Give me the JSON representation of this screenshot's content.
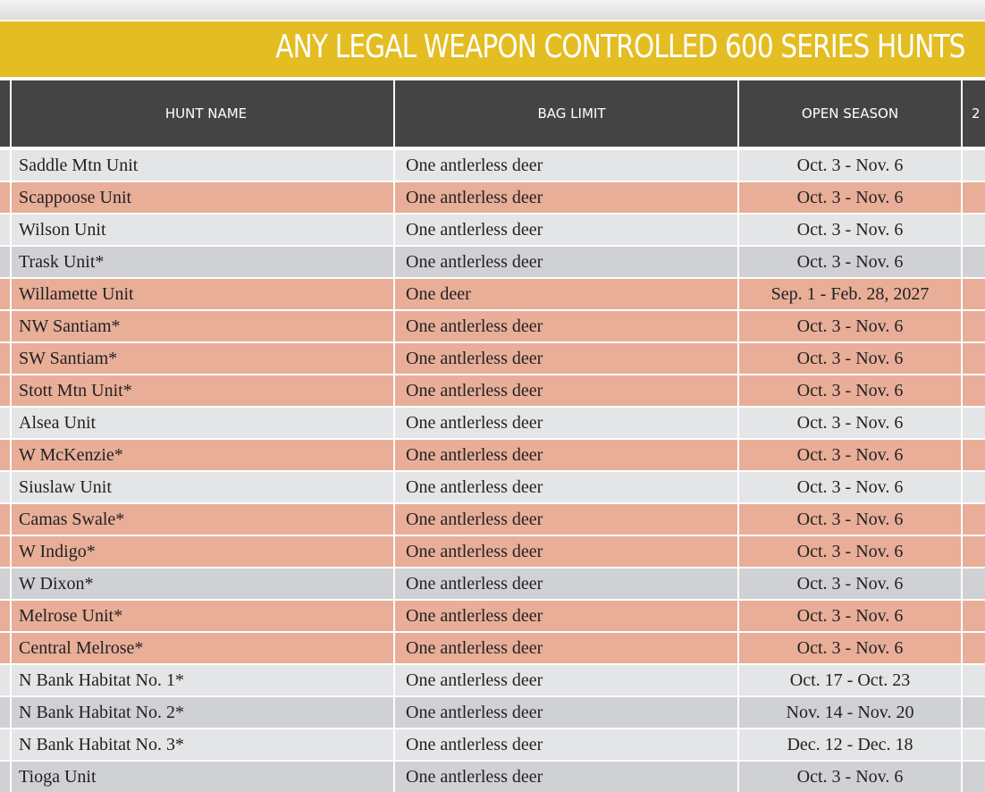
{
  "header": {
    "title": "ANY LEGAL WEAPON CONTROLLED 600 SERIES HUNTS"
  },
  "table": {
    "columns": [
      "HUNT NAME",
      "BAG LIMIT",
      "OPEN SEASON",
      "2"
    ],
    "rows": [
      [
        "Saddle Mtn Unit",
        "One antlerless deer",
        "Oct. 3 - Nov. 6"
      ],
      [
        "Scappoose Unit",
        "One antlerless deer",
        "Oct. 3 - Nov. 6"
      ],
      [
        "Wilson Unit",
        "One antlerless deer",
        "Oct. 3 - Nov. 6"
      ],
      [
        "Trask Unit*",
        "One antlerless deer",
        "Oct. 3 - Nov. 6"
      ],
      [
        "Willamette Unit",
        "One deer",
        "Sep. 1 - Feb. 28, 2027"
      ],
      [
        "NW Santiam*",
        "One antlerless deer",
        "Oct. 3 - Nov. 6"
      ],
      [
        "SW Santiam*",
        "One antlerless deer",
        "Oct. 3 - Nov. 6"
      ],
      [
        "Stott Mtn Unit*",
        "One antlerless deer",
        "Oct. 3 - Nov. 6"
      ],
      [
        "Alsea Unit",
        "One antlerless deer",
        "Oct. 3 - Nov. 6"
      ],
      [
        "W McKenzie*",
        "One antlerless deer",
        "Oct. 3 - Nov. 6"
      ],
      [
        "Siuslaw Unit",
        "One antlerless deer",
        "Oct. 3 - Nov. 6"
      ],
      [
        "Camas Swale*",
        "One antlerless deer",
        "Oct. 3 - Nov. 6"
      ],
      [
        "W Indigo*",
        "One antlerless deer",
        "Oct. 3 - Nov. 6"
      ],
      [
        "W Dixon*",
        "One antlerless deer",
        "Oct. 3 - Nov. 6"
      ],
      [
        "Melrose Unit*",
        "One antlerless deer",
        "Oct. 3 - Nov. 6"
      ],
      [
        "Central Melrose*",
        "One antlerless deer",
        "Oct. 3 - Nov. 6"
      ],
      [
        "N Bank Habitat No. 1*",
        "One antlerless deer",
        "Oct. 17 - Oct. 23"
      ],
      [
        "N Bank Habitat No. 2*",
        "One antlerless deer",
        "Nov. 14 - Nov. 20"
      ],
      [
        "N Bank Habitat No. 3*",
        "One antlerless deer",
        "Dec. 12 - Dec. 18"
      ],
      [
        "Tioga Unit",
        "One antlerless deer",
        "Oct. 3 - Nov. 6"
      ]
    ]
  }
}
